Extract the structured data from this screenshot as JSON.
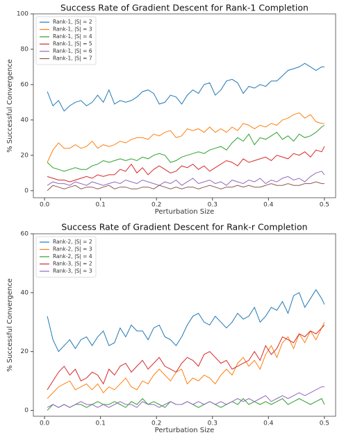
{
  "chart_data": [
    {
      "type": "line",
      "title": "Success Rate of Gradient Descent for Rank-1 Completion",
      "x_label": "Perturbation Size",
      "y_label": "% Successful Convergence",
      "x": [
        0.005,
        0.015,
        0.025,
        0.035,
        0.045,
        0.055,
        0.065,
        0.075,
        0.085,
        0.095,
        0.105,
        0.115,
        0.125,
        0.135,
        0.145,
        0.155,
        0.165,
        0.175,
        0.185,
        0.195,
        0.205,
        0.215,
        0.225,
        0.235,
        0.245,
        0.255,
        0.265,
        0.275,
        0.285,
        0.295,
        0.305,
        0.315,
        0.325,
        0.335,
        0.345,
        0.355,
        0.365,
        0.375,
        0.385,
        0.395,
        0.405,
        0.415,
        0.425,
        0.435,
        0.445,
        0.455,
        0.465,
        0.475,
        0.485,
        0.495,
        0.5
      ],
      "series": [
        {
          "name": "Rank-1, |S| = 2",
          "color": "#1f77b4",
          "values": [
            56,
            48,
            51,
            45,
            48,
            50,
            51,
            48,
            50,
            54,
            50,
            57,
            49,
            51,
            50,
            51,
            53,
            56,
            57,
            55,
            49,
            50,
            54,
            53,
            49,
            54,
            57,
            55,
            60,
            61,
            54,
            57,
            62,
            63,
            61,
            55,
            59,
            58,
            60,
            59,
            62,
            62,
            65,
            68,
            69,
            70,
            72,
            70,
            68,
            70,
            70
          ]
        },
        {
          "name": "Rank-1, |S| = 3",
          "color": "#ff7f0e",
          "values": [
            16,
            23,
            27,
            24,
            24,
            26,
            24,
            25,
            28,
            24,
            26,
            25,
            26,
            28,
            27,
            29,
            30,
            30,
            29,
            32,
            31,
            33,
            34,
            30,
            31,
            35,
            34,
            35,
            33,
            36,
            33,
            35,
            33,
            36,
            34,
            38,
            37,
            35,
            37,
            36,
            38,
            37,
            40,
            41,
            43,
            44,
            41,
            43,
            39,
            38,
            38
          ]
        },
        {
          "name": "Rank-1, |S| = 4",
          "color": "#2ca02c",
          "values": [
            16,
            13,
            12,
            11,
            12,
            13,
            12,
            12,
            14,
            15,
            17,
            16,
            17,
            18,
            17,
            18,
            17,
            19,
            18,
            20,
            21,
            20,
            16,
            17,
            19,
            20,
            21,
            22,
            21,
            23,
            24,
            25,
            23,
            27,
            30,
            28,
            32,
            26,
            30,
            29,
            31,
            33,
            29,
            31,
            28,
            32,
            30,
            31,
            33,
            36,
            37
          ]
        },
        {
          "name": "Rank-1, |S| = 5",
          "color": "#d62728",
          "values": [
            8,
            7,
            6,
            6,
            5,
            6,
            7,
            8,
            7,
            9,
            8,
            9,
            9,
            12,
            11,
            15,
            10,
            13,
            9,
            12,
            14,
            12,
            10,
            11,
            14,
            13,
            15,
            12,
            14,
            11,
            13,
            15,
            17,
            16,
            14,
            18,
            16,
            17,
            18,
            19,
            17,
            20,
            19,
            18,
            21,
            20,
            22,
            19,
            23,
            22,
            25
          ]
        },
        {
          "name": "Rank-1, |S| = 6",
          "color": "#9467bd",
          "values": [
            3,
            5,
            4,
            4,
            3,
            5,
            4,
            3,
            5,
            4,
            3,
            4,
            5,
            4,
            6,
            5,
            4,
            6,
            5,
            4,
            3,
            5,
            4,
            6,
            3,
            5,
            7,
            4,
            5,
            6,
            4,
            5,
            3,
            6,
            5,
            4,
            6,
            5,
            7,
            4,
            6,
            5,
            7,
            8,
            6,
            7,
            5,
            8,
            10,
            11,
            9
          ]
        },
        {
          "name": "Rank-1, |S| = 7",
          "color": "#8c564b",
          "values": [
            0,
            3,
            2,
            1,
            2,
            3,
            1,
            2,
            2,
            1,
            2,
            3,
            1,
            2,
            2,
            1,
            1,
            2,
            2,
            1,
            3,
            2,
            1,
            2,
            1,
            2,
            2,
            1,
            2,
            3,
            2,
            1,
            2,
            2,
            3,
            2,
            3,
            2,
            2,
            3,
            4,
            3,
            3,
            4,
            3,
            3,
            4,
            4,
            5,
            4,
            4
          ]
        }
      ],
      "xlim": [
        -0.02,
        0.52
      ],
      "xticks": [
        {
          "value": 0,
          "label": "0.0"
        },
        0.1,
        0.2,
        0.3,
        0.4,
        0.5
      ],
      "ylim": [
        -4,
        100
      ],
      "yticks": [
        0,
        20,
        40,
        60,
        80,
        100
      ],
      "legend": "upper left"
    },
    {
      "type": "line",
      "title": "Success Rate of Gradient Descent for Rank-r Completion",
      "x_label": "Perturbation Size",
      "y_label": "% Successful Convergence",
      "x": [
        0.005,
        0.015,
        0.025,
        0.035,
        0.045,
        0.055,
        0.065,
        0.075,
        0.085,
        0.095,
        0.105,
        0.115,
        0.125,
        0.135,
        0.145,
        0.155,
        0.165,
        0.175,
        0.185,
        0.195,
        0.205,
        0.215,
        0.225,
        0.235,
        0.245,
        0.255,
        0.265,
        0.275,
        0.285,
        0.295,
        0.305,
        0.315,
        0.325,
        0.335,
        0.345,
        0.355,
        0.365,
        0.375,
        0.385,
        0.395,
        0.405,
        0.415,
        0.425,
        0.435,
        0.445,
        0.455,
        0.465,
        0.475,
        0.485,
        0.495,
        0.5
      ],
      "series": [
        {
          "name": "Rank-2, |S| = 2",
          "color": "#1f77b4",
          "values": [
            32,
            24,
            20,
            22,
            24,
            21,
            24,
            25,
            22,
            25,
            27,
            22,
            23,
            28,
            25,
            29,
            27,
            27,
            24,
            28,
            29,
            25,
            24,
            22,
            25,
            29,
            32,
            33,
            30,
            29,
            32,
            30,
            28,
            30,
            33,
            31,
            32,
            35,
            30,
            32,
            35,
            34,
            37,
            33,
            39,
            40,
            35,
            38,
            41,
            38,
            36
          ]
        },
        {
          "name": "Rank-2, |S| = 3",
          "color": "#ff7f0e",
          "values": [
            4,
            6,
            8,
            9,
            10,
            7,
            8,
            9,
            7,
            9,
            6,
            8,
            7,
            9,
            11,
            8,
            7,
            10,
            9,
            12,
            14,
            12,
            10,
            13,
            14,
            9,
            11,
            10,
            12,
            11,
            9,
            12,
            14,
            12,
            16,
            18,
            15,
            17,
            14,
            19,
            22,
            18,
            23,
            25,
            21,
            26,
            23,
            27,
            24,
            28,
            30
          ]
        },
        {
          "name": "Rank-2, |S| = 4",
          "color": "#2ca02c",
          "values": [
            0,
            2,
            1,
            2,
            1,
            2,
            2,
            1,
            2,
            3,
            2,
            2,
            3,
            2,
            1,
            3,
            2,
            4,
            2,
            3,
            2,
            1,
            3,
            2,
            2,
            3,
            2,
            1,
            2,
            3,
            2,
            1,
            2,
            3,
            2,
            4,
            2,
            3,
            2,
            3,
            2,
            3,
            4,
            2,
            3,
            4,
            3,
            2,
            3,
            4,
            2
          ]
        },
        {
          "name": "Rank-3, |S| = 2",
          "color": "#d62728",
          "values": [
            7,
            10,
            13,
            15,
            12,
            14,
            10,
            11,
            13,
            12,
            9,
            14,
            12,
            15,
            16,
            13,
            15,
            17,
            14,
            16,
            18,
            15,
            14,
            13,
            16,
            18,
            17,
            15,
            19,
            20,
            18,
            16,
            17,
            14,
            15,
            16,
            17,
            20,
            17,
            22,
            19,
            21,
            25,
            24,
            23,
            26,
            25,
            27,
            26,
            28,
            29
          ]
        },
        {
          "name": "Rank-3, |S| = 3",
          "color": "#9467bd",
          "values": [
            1,
            2,
            1,
            2,
            1,
            2,
            3,
            2,
            2,
            1,
            2,
            1,
            2,
            3,
            2,
            2,
            1,
            3,
            2,
            2,
            1,
            2,
            3,
            2,
            2,
            3,
            2,
            3,
            2,
            3,
            2,
            3,
            2,
            3,
            4,
            3,
            4,
            3,
            4,
            5,
            3,
            4,
            5,
            4,
            5,
            6,
            5,
            6,
            7,
            8,
            8
          ]
        }
      ],
      "xlim": [
        -0.02,
        0.52
      ],
      "xticks": [
        {
          "value": 0,
          "label": "0.0"
        },
        0.1,
        0.2,
        0.3,
        0.4,
        0.5
      ],
      "ylim": [
        -2,
        60
      ],
      "yticks": [
        0,
        20,
        40,
        60
      ],
      "legend": "upper left"
    }
  ]
}
